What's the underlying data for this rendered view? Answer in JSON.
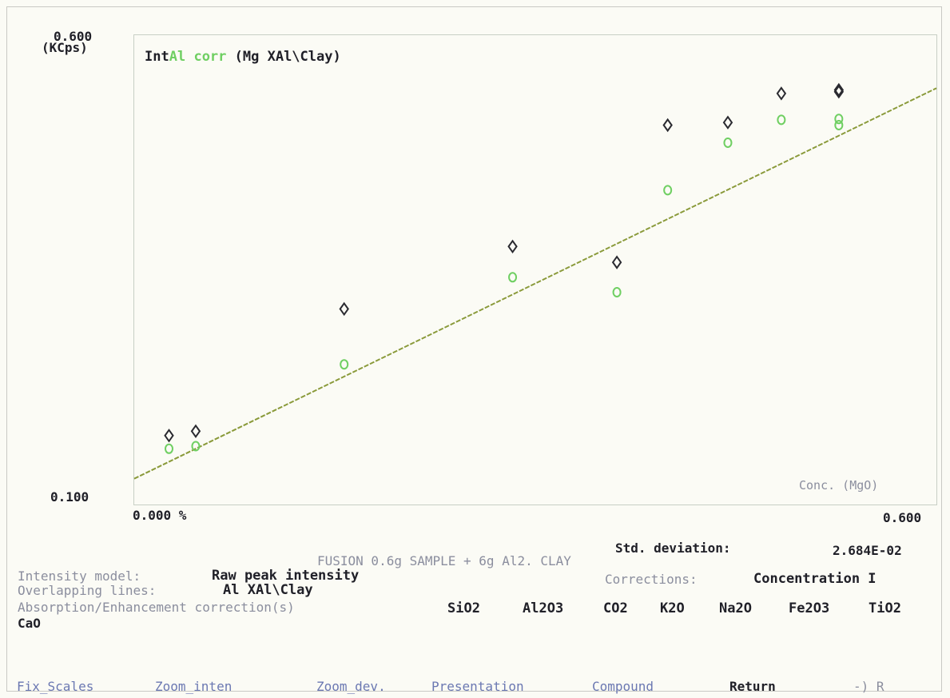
{
  "chart_data": {
    "type": "scatter",
    "title_prefix": "Int",
    "title_element": "Al",
    "title_corr": "corr",
    "title_suffix": "(Mg XAl\\Clay)",
    "y_top_label": "0.600",
    "y_unit": "(KCps)",
    "y_bottom_label": "0.100",
    "x_left_label": "0.000 %",
    "x_right_label": "0.600",
    "x_axis_name": "Conc. (MgO)",
    "xlim": [
      0.0,
      0.6
    ],
    "ylim": [
      0.1,
      0.6
    ],
    "grid": false,
    "series": [
      {
        "name": "",
        "color": "#2a2a30",
        "marker": "diamond",
        "x": [
          0.026,
          0.046,
          0.157,
          0.283,
          0.361,
          0.399,
          0.444,
          0.484,
          0.527,
          0.527
        ],
        "y": [
          0.162,
          0.167,
          0.306,
          0.377,
          0.359,
          0.515,
          0.518,
          0.551,
          0.553,
          0.555
        ]
      },
      {
        "name": "",
        "color": "#6fcf62",
        "marker": "circle",
        "x": [
          0.026,
          0.046,
          0.157,
          0.283,
          0.361,
          0.399,
          0.444,
          0.484,
          0.527,
          0.527
        ],
        "y": [
          0.147,
          0.15,
          0.243,
          0.342,
          0.325,
          0.441,
          0.495,
          0.521,
          0.515,
          0.522
        ]
      }
    ],
    "fit_line": {
      "color": "#8a9a3a",
      "x": [
        0.0,
        0.6
      ],
      "y": [
        0.113,
        0.557
      ]
    }
  },
  "stats": {
    "std_label": "Std. deviation:",
    "std_value": "2.684E-02"
  },
  "sample_title": "FUSION 0.6g SAMPLE + 6g Al2. CLAY",
  "info": {
    "intensity_label": "Intensity model:",
    "intensity_value": "Raw peak intensity",
    "corrections_label": "Corrections:",
    "corrections_value": "Concentration I",
    "overlap_label": "Overlapping lines:",
    "overlap_value": "Al XAl\\Clay",
    "absorption_label": "Absorption/Enhancement correction(s)",
    "compounds": [
      "SiO2",
      "Al2O3",
      "CO2",
      "K2O",
      "Na2O",
      "Fe2O3",
      "TiO2"
    ],
    "extra_compound": "CaO"
  },
  "menu": {
    "fix_scales": "Fix_Scales",
    "zoom_inten": "Zoom_inten",
    "zoom_dev": "Zoom_dev.",
    "presentation": "Presentation",
    "compound": "Compound",
    "return": "Return",
    "arrow": "-) R"
  }
}
